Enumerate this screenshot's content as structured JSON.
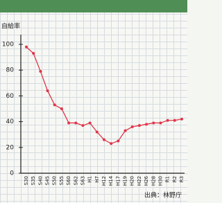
{
  "chart_data": {
    "type": "line",
    "y_label": "自給率",
    "source": "出典：林野庁",
    "categories": [
      "S30",
      "S35",
      "S40",
      "S45",
      "S50",
      "S55",
      "S60",
      "S62",
      "S63",
      "H1",
      "H7",
      "H12",
      "H14",
      "H17",
      "H19",
      "H20",
      "H22",
      "H26",
      "H28",
      "H30",
      "R1",
      "R2",
      "R3"
    ],
    "values": [
      98,
      93,
      79,
      64,
      53,
      50,
      39,
      39,
      37,
      39,
      32,
      26,
      23,
      25,
      33,
      36,
      37,
      38,
      39,
      39,
      41,
      41,
      42
    ],
    "color": "#e0354a",
    "ylim": [
      0,
      100
    ],
    "yticks": [
      0,
      20,
      40,
      60,
      80,
      100
    ]
  }
}
